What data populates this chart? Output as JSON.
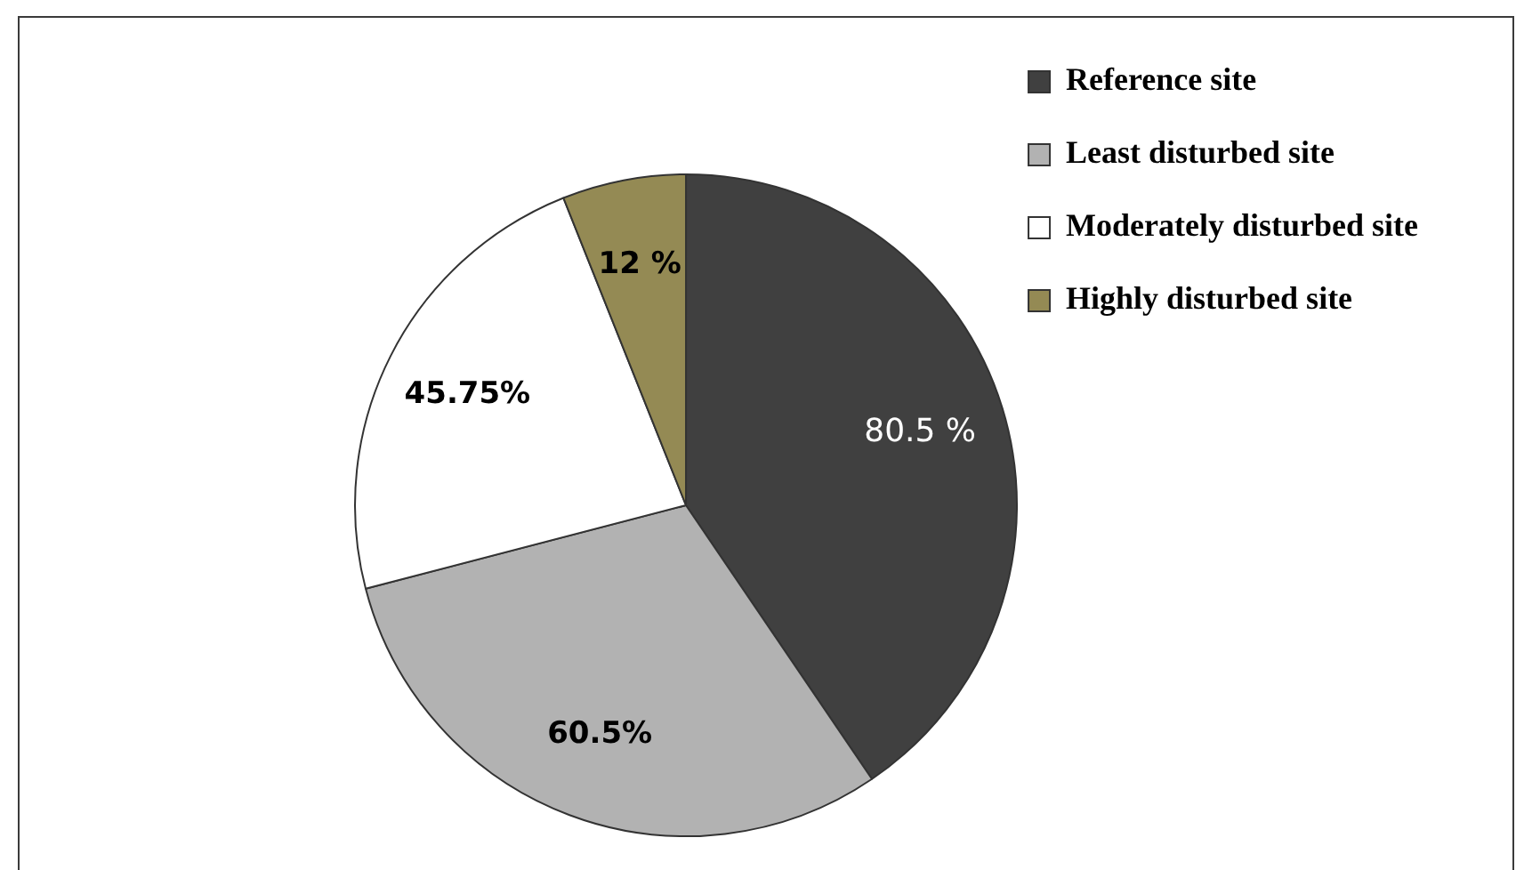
{
  "chart_data": {
    "type": "pie",
    "categories": [
      "Reference site",
      "Least disturbed site",
      "Moderately disturbed site",
      "Highly disturbed site"
    ],
    "values": [
      80.5,
      60.5,
      45.75,
      12
    ],
    "colors": [
      "#404040",
      "#b2b2b2",
      "#ffffff",
      "#948a54"
    ],
    "value_labels": [
      "80.5 %",
      "60.5%",
      "45.75%",
      "12 %"
    ],
    "legend": "top right"
  }
}
